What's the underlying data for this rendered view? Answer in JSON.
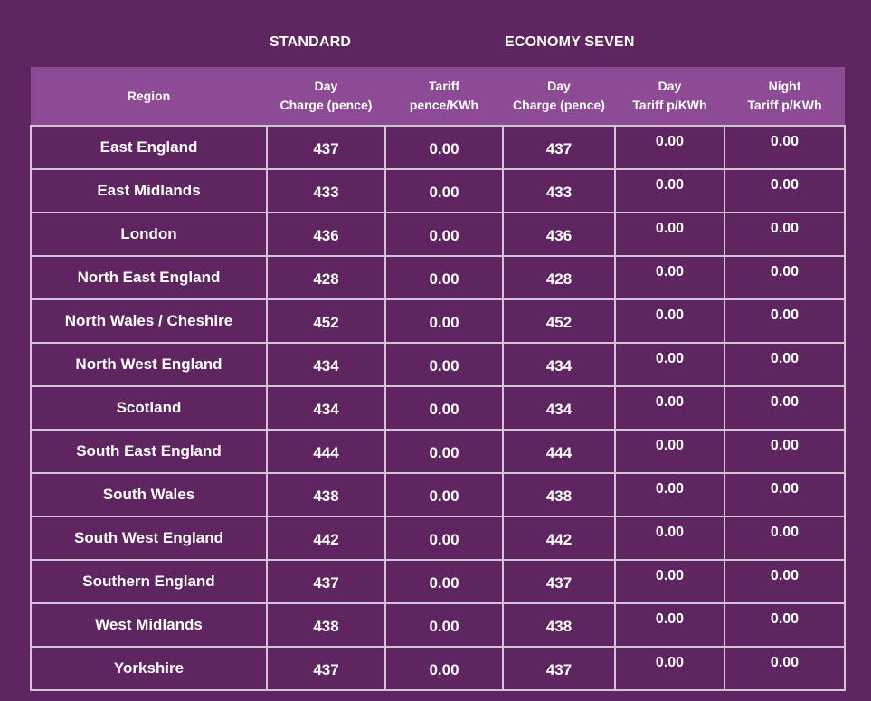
{
  "groups": {
    "standard": "STANDARD",
    "economy_seven": "ECONOMY SEVEN"
  },
  "columns": {
    "region": "Region",
    "std_day_1": "Day",
    "std_day_2": "Charge (pence)",
    "std_tariff_1": "Tariff",
    "std_tariff_2": "pence/KWh",
    "e7_day_1": "Day",
    "e7_day_2": "Charge (pence)",
    "e7_daytariff_1": "Day",
    "e7_daytariff_2": "Tariff p/KWh",
    "e7_night_1": "Night",
    "e7_night_2": "Tariff p/KWh"
  },
  "rows": [
    {
      "region": "East England",
      "std_day": "437",
      "std_tariff": "0.00",
      "e7_day": "437",
      "e7_day_tariff": "0.00",
      "e7_night_tariff": "0.00"
    },
    {
      "region": "East Midlands",
      "std_day": "433",
      "std_tariff": "0.00",
      "e7_day": "433",
      "e7_day_tariff": "0.00",
      "e7_night_tariff": "0.00"
    },
    {
      "region": "London",
      "std_day": "436",
      "std_tariff": "0.00",
      "e7_day": "436",
      "e7_day_tariff": "0.00",
      "e7_night_tariff": "0.00"
    },
    {
      "region": "North East England",
      "std_day": "428",
      "std_tariff": "0.00",
      "e7_day": "428",
      "e7_day_tariff": "0.00",
      "e7_night_tariff": "0.00"
    },
    {
      "region": "North Wales / Cheshire",
      "std_day": "452",
      "std_tariff": "0.00",
      "e7_day": "452",
      "e7_day_tariff": "0.00",
      "e7_night_tariff": "0.00"
    },
    {
      "region": "North West England",
      "std_day": "434",
      "std_tariff": "0.00",
      "e7_day": "434",
      "e7_day_tariff": "0.00",
      "e7_night_tariff": "0.00"
    },
    {
      "region": "Scotland",
      "std_day": "434",
      "std_tariff": "0.00",
      "e7_day": "434",
      "e7_day_tariff": "0.00",
      "e7_night_tariff": "0.00"
    },
    {
      "region": "South East England",
      "std_day": "444",
      "std_tariff": "0.00",
      "e7_day": "444",
      "e7_day_tariff": "0.00",
      "e7_night_tariff": "0.00"
    },
    {
      "region": "South Wales",
      "std_day": "438",
      "std_tariff": "0.00",
      "e7_day": "438",
      "e7_day_tariff": "0.00",
      "e7_night_tariff": "0.00"
    },
    {
      "region": "South West England",
      "std_day": "442",
      "std_tariff": "0.00",
      "e7_day": "442",
      "e7_day_tariff": "0.00",
      "e7_night_tariff": "0.00"
    },
    {
      "region": "Southern England",
      "std_day": "437",
      "std_tariff": "0.00",
      "e7_day": "437",
      "e7_day_tariff": "0.00",
      "e7_night_tariff": "0.00"
    },
    {
      "region": "West Midlands",
      "std_day": "438",
      "std_tariff": "0.00",
      "e7_day": "438",
      "e7_day_tariff": "0.00",
      "e7_night_tariff": "0.00"
    },
    {
      "region": "Yorkshire",
      "std_day": "437",
      "std_tariff": "0.00",
      "e7_day": "437",
      "e7_day_tariff": "0.00",
      "e7_night_tariff": "0.00"
    }
  ],
  "colors": {
    "background": "#5f2560",
    "header": "#8d4a95",
    "grid": "#d4c2d6",
    "text": "#ffffff"
  }
}
